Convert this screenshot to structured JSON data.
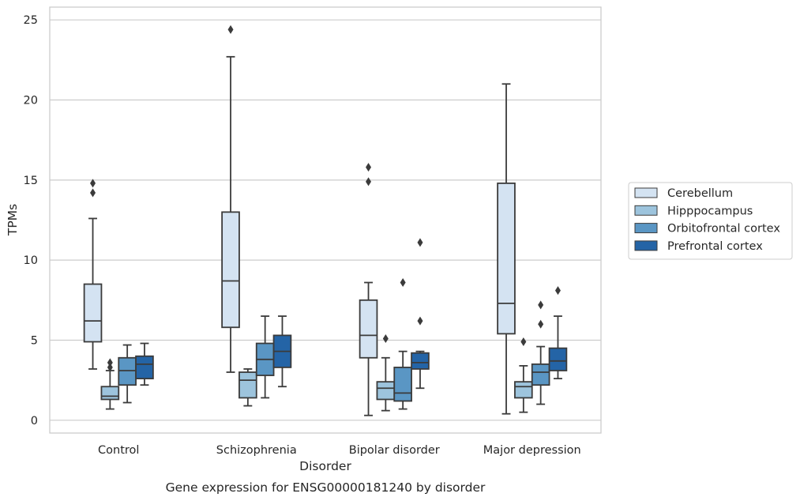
{
  "chart_data": {
    "type": "boxplot",
    "xlabel": "Disorder",
    "ylabel": "TPMs",
    "caption": "Gene expression for ENSG00000181240 by disorder",
    "ylim": [
      -0.8,
      25.8
    ],
    "y_ticks": [
      0,
      5,
      10,
      15,
      20,
      25
    ],
    "categories": [
      "Control",
      "Schizophrenia",
      "Bipolar disorder",
      "Major depression"
    ],
    "grid": "horizontal",
    "legend_position": "right",
    "series": [
      {
        "name": "Cerebellum",
        "color": "#d4e3f2",
        "boxes": [
          {
            "whislo": 3.2,
            "q1": 4.9,
            "med": 6.2,
            "q3": 8.5,
            "whishi": 12.6,
            "fliers": [
              14.2,
              14.8
            ]
          },
          {
            "whislo": 3.0,
            "q1": 5.8,
            "med": 8.7,
            "q3": 13.0,
            "whishi": 22.7,
            "fliers": [
              24.4
            ]
          },
          {
            "whislo": 0.3,
            "q1": 3.9,
            "med": 5.3,
            "q3": 7.5,
            "whishi": 8.6,
            "fliers": [
              14.9,
              15.8
            ]
          },
          {
            "whislo": 0.4,
            "q1": 5.4,
            "med": 7.3,
            "q3": 14.8,
            "whishi": 21.0,
            "fliers": []
          }
        ]
      },
      {
        "name": "Hipppocampus",
        "color": "#9dc4dd",
        "boxes": [
          {
            "whislo": 0.7,
            "q1": 1.3,
            "med": 1.5,
            "q3": 2.1,
            "whishi": 3.1,
            "fliers": [
              3.3,
              3.6
            ]
          },
          {
            "whislo": 0.9,
            "q1": 1.4,
            "med": 2.5,
            "q3": 3.0,
            "whishi": 3.2,
            "fliers": []
          },
          {
            "whislo": 0.6,
            "q1": 1.3,
            "med": 2.0,
            "q3": 2.4,
            "whishi": 3.9,
            "fliers": [
              5.1
            ]
          },
          {
            "whislo": 0.5,
            "q1": 1.4,
            "med": 2.1,
            "q3": 2.4,
            "whishi": 3.4,
            "fliers": [
              4.9
            ]
          }
        ]
      },
      {
        "name": "Orbitofrontal cortex",
        "color": "#5a96c4",
        "boxes": [
          {
            "whislo": 1.1,
            "q1": 2.2,
            "med": 3.1,
            "q3": 3.9,
            "whishi": 4.7,
            "fliers": []
          },
          {
            "whislo": 1.4,
            "q1": 2.8,
            "med": 3.8,
            "q3": 4.8,
            "whishi": 6.5,
            "fliers": []
          },
          {
            "whislo": 0.7,
            "q1": 1.2,
            "med": 1.7,
            "q3": 3.3,
            "whishi": 4.3,
            "fliers": [
              8.6
            ]
          },
          {
            "whislo": 1.0,
            "q1": 2.2,
            "med": 3.0,
            "q3": 3.5,
            "whishi": 4.6,
            "fliers": [
              6.0,
              7.2
            ]
          }
        ]
      },
      {
        "name": "Prefrontal cortex",
        "color": "#2464a6",
        "boxes": [
          {
            "whislo": 2.2,
            "q1": 2.6,
            "med": 3.5,
            "q3": 4.0,
            "whishi": 4.8,
            "fliers": []
          },
          {
            "whislo": 2.1,
            "q1": 3.3,
            "med": 4.3,
            "q3": 5.3,
            "whishi": 6.5,
            "fliers": []
          },
          {
            "whislo": 2.0,
            "q1": 3.2,
            "med": 3.6,
            "q3": 4.2,
            "whishi": 4.3,
            "fliers": [
              6.2,
              11.1
            ]
          },
          {
            "whislo": 2.6,
            "q1": 3.1,
            "med": 3.7,
            "q3": 4.5,
            "whishi": 6.5,
            "fliers": [
              8.1
            ]
          }
        ]
      }
    ]
  }
}
